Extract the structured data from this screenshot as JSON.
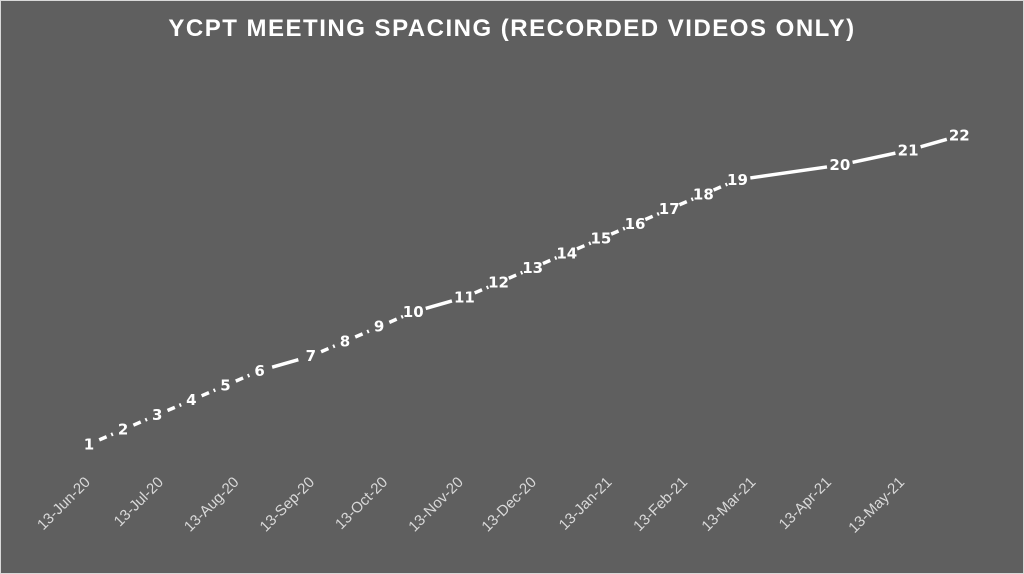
{
  "chart_data": {
    "type": "line",
    "title": "YCPT MEETING SPACING (RECORDED VIDEOS ONLY)",
    "xlabel": "",
    "ylabel": "",
    "x_axis_type": "date",
    "xlim": [
      "2020-06-13",
      "2021-06-18"
    ],
    "tick_labels": [
      "13-Jun-20",
      "13-Jul-20",
      "13-Aug-20",
      "13-Sep-20",
      "13-Oct-20",
      "13-Nov-20",
      "13-Dec-20",
      "13-Jan-21",
      "13-Feb-21",
      "13-Mar-21",
      "13-Apr-21",
      "13-May-21"
    ],
    "tick_dates": [
      "2020-06-13",
      "2020-07-13",
      "2020-08-13",
      "2020-09-13",
      "2020-10-13",
      "2020-11-13",
      "2020-12-13",
      "2021-01-13",
      "2021-02-13",
      "2021-03-13",
      "2021-04-13",
      "2021-05-13"
    ],
    "ylim": [
      0,
      23
    ],
    "y_axis_visible": false,
    "grid": false,
    "legend": "none",
    "drop_lines": true,
    "line_style": "dashed where meetings are regularly spaced, solid where gaps are longer",
    "colors": {
      "background": "#5f5f5f",
      "line": "#ffffff",
      "drop_line": "#ffffff",
      "text": "#ffffff",
      "tick_text": "#d9d9d9"
    },
    "series": [
      {
        "points": [
          {
            "x": "2020-06-13",
            "y": 1
          },
          {
            "x": "2020-06-27",
            "y": 2
          },
          {
            "x": "2020-07-11",
            "y": 3
          },
          {
            "x": "2020-07-25",
            "y": 4
          },
          {
            "x": "2020-08-08",
            "y": 5
          },
          {
            "x": "2020-08-22",
            "y": 6
          },
          {
            "x": "2020-09-12",
            "y": 7
          },
          {
            "x": "2020-09-26",
            "y": 8
          },
          {
            "x": "2020-10-10",
            "y": 9
          },
          {
            "x": "2020-10-24",
            "y": 10
          },
          {
            "x": "2020-11-14",
            "y": 11
          },
          {
            "x": "2020-11-28",
            "y": 12
          },
          {
            "x": "2020-12-12",
            "y": 13
          },
          {
            "x": "2020-12-26",
            "y": 14
          },
          {
            "x": "2021-01-09",
            "y": 15
          },
          {
            "x": "2021-01-23",
            "y": 16
          },
          {
            "x": "2021-02-06",
            "y": 17
          },
          {
            "x": "2021-02-20",
            "y": 18
          },
          {
            "x": "2021-03-06",
            "y": 19
          },
          {
            "x": "2021-04-17",
            "y": 20
          },
          {
            "x": "2021-05-15",
            "y": 21
          },
          {
            "x": "2021-06-05",
            "y": 22
          }
        ]
      }
    ]
  }
}
